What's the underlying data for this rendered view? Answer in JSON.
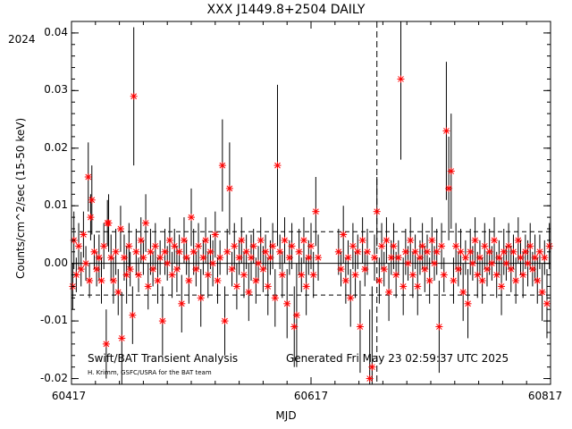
{
  "chart_data": {
    "type": "scatter",
    "title": "XXX J1449.8+2504 DAILY",
    "year_label": "2024",
    "xlabel": "MJD",
    "ylabel": "Counts/cm^2/sec (15-50 keV)",
    "xlim": [
      60417,
      60817
    ],
    "ylim": [
      -0.021,
      0.042
    ],
    "xticks": [
      60417,
      60617,
      60817
    ],
    "xtick_labels": [
      "60417",
      "60617",
      "60817"
    ],
    "yticks": [
      -0.02,
      -0.01,
      0.0,
      0.01,
      0.02,
      0.03,
      0.04
    ],
    "ytick_labels": [
      "-0.02",
      "-0.01",
      "0.00",
      "0.01",
      "0.02",
      "0.03",
      "0.04"
    ],
    "reference_lines": {
      "zero": 0.0,
      "upper_dashed": 0.0055,
      "lower_dashed": -0.0055,
      "vertical_dashed_x": 60672
    },
    "marker_color": "#ff0000",
    "errorbar_color": "#000000",
    "credit_line1": "Swift/BAT Transient Analysis",
    "credit_line2": "H. Krimm, GSFC/USRA for the BAT team",
    "generated": "Generated Fri May 23 02:59:37 UTC 2025",
    "points": [
      [
        60418,
        -0.004,
        0.004
      ],
      [
        60419,
        0.004,
        0.005
      ],
      [
        60421,
        -0.002,
        0.003
      ],
      [
        60423,
        0.003,
        0.004
      ],
      [
        60425,
        -0.001,
        0.003
      ],
      [
        60427,
        0.005,
        0.004
      ],
      [
        60429,
        0.0,
        0.003
      ],
      [
        60431,
        0.015,
        0.006
      ],
      [
        60432,
        -0.003,
        0.003
      ],
      [
        60433,
        0.008,
        0.004
      ],
      [
        60434,
        0.011,
        0.006
      ],
      [
        60436,
        0.002,
        0.003
      ],
      [
        60438,
        -0.001,
        0.003
      ],
      [
        60440,
        0.001,
        0.004
      ],
      [
        60442,
        -0.003,
        0.004
      ],
      [
        60444,
        0.003,
        0.004
      ],
      [
        60446,
        -0.014,
        0.006
      ],
      [
        60447,
        0.007,
        0.004
      ],
      [
        60448,
        0.007,
        0.005
      ],
      [
        60450,
        0.001,
        0.004
      ],
      [
        60452,
        -0.003,
        0.004
      ],
      [
        60454,
        0.002,
        0.004
      ],
      [
        60456,
        -0.005,
        0.004
      ],
      [
        60458,
        0.006,
        0.004
      ],
      [
        60459,
        -0.013,
        0.008
      ],
      [
        60461,
        0.001,
        0.004
      ],
      [
        60463,
        -0.002,
        0.005
      ],
      [
        60465,
        0.003,
        0.004
      ],
      [
        60466,
        -0.001,
        0.003
      ],
      [
        60468,
        -0.009,
        0.005
      ],
      [
        60469,
        0.029,
        0.012
      ],
      [
        60471,
        0.002,
        0.004
      ],
      [
        60473,
        -0.002,
        0.003
      ],
      [
        60475,
        0.004,
        0.004
      ],
      [
        60477,
        0.001,
        0.003
      ],
      [
        60479,
        0.007,
        0.005
      ],
      [
        60481,
        -0.004,
        0.004
      ],
      [
        60483,
        0.002,
        0.004
      ],
      [
        60485,
        -0.001,
        0.003
      ],
      [
        60487,
        0.003,
        0.004
      ],
      [
        60489,
        -0.003,
        0.004
      ],
      [
        60491,
        0.001,
        0.003
      ],
      [
        60493,
        -0.01,
        0.006
      ],
      [
        60495,
        0.002,
        0.004
      ],
      [
        60497,
        0.0,
        0.003
      ],
      [
        60499,
        0.004,
        0.004
      ],
      [
        60501,
        -0.002,
        0.004
      ],
      [
        60503,
        0.003,
        0.003
      ],
      [
        60505,
        -0.001,
        0.004
      ],
      [
        60507,
        0.002,
        0.003
      ],
      [
        60509,
        -0.007,
        0.005
      ],
      [
        60511,
        0.004,
        0.004
      ],
      [
        60513,
        0.001,
        0.003
      ],
      [
        60515,
        -0.003,
        0.004
      ],
      [
        60517,
        0.008,
        0.005
      ],
      [
        60519,
        0.002,
        0.004
      ],
      [
        60521,
        -0.001,
        0.003
      ],
      [
        60523,
        0.003,
        0.004
      ],
      [
        60525,
        -0.006,
        0.005
      ],
      [
        60527,
        0.001,
        0.003
      ],
      [
        60529,
        0.004,
        0.004
      ],
      [
        60531,
        -0.002,
        0.004
      ],
      [
        60533,
        0.002,
        0.003
      ],
      [
        60535,
        0.0,
        0.004
      ],
      [
        60537,
        0.005,
        0.004
      ],
      [
        60539,
        -0.003,
        0.004
      ],
      [
        60541,
        0.001,
        0.003
      ],
      [
        60543,
        0.017,
        0.008
      ],
      [
        60545,
        -0.01,
        0.006
      ],
      [
        60547,
        0.002,
        0.004
      ],
      [
        60549,
        0.013,
        0.008
      ],
      [
        60551,
        -0.001,
        0.003
      ],
      [
        60553,
        0.003,
        0.004
      ],
      [
        60555,
        -0.004,
        0.004
      ],
      [
        60557,
        0.001,
        0.003
      ],
      [
        60559,
        0.004,
        0.004
      ],
      [
        60561,
        -0.002,
        0.004
      ],
      [
        60563,
        0.002,
        0.003
      ],
      [
        60565,
        -0.005,
        0.005
      ],
      [
        60567,
        0.001,
        0.004
      ],
      [
        60569,
        0.003,
        0.003
      ],
      [
        60571,
        -0.003,
        0.004
      ],
      [
        60573,
        0.0,
        0.003
      ],
      [
        60575,
        0.004,
        0.004
      ],
      [
        60577,
        -0.001,
        0.004
      ],
      [
        60579,
        0.002,
        0.003
      ],
      [
        60581,
        -0.004,
        0.005
      ],
      [
        60583,
        0.001,
        0.003
      ],
      [
        60585,
        0.003,
        0.004
      ],
      [
        60587,
        -0.006,
        0.005
      ],
      [
        60589,
        0.017,
        0.014
      ],
      [
        60591,
        0.002,
        0.003
      ],
      [
        60593,
        -0.002,
        0.004
      ],
      [
        60595,
        0.004,
        0.004
      ],
      [
        60597,
        -0.007,
        0.006
      ],
      [
        60599,
        0.001,
        0.003
      ],
      [
        60601,
        0.003,
        0.004
      ],
      [
        60603,
        -0.011,
        0.007
      ],
      [
        60605,
        -0.009,
        0.009
      ],
      [
        60607,
        0.002,
        0.004
      ],
      [
        60609,
        -0.002,
        0.003
      ],
      [
        60611,
        0.004,
        0.004
      ],
      [
        60613,
        -0.004,
        0.005
      ],
      [
        60615,
        0.001,
        0.003
      ],
      [
        60617,
        0.003,
        0.004
      ],
      [
        60619,
        -0.002,
        0.004
      ],
      [
        60621,
        0.009,
        0.006
      ],
      [
        60623,
        0.001,
        0.004
      ],
      [
        60640,
        0.002,
        0.004
      ],
      [
        60642,
        -0.001,
        0.003
      ],
      [
        60644,
        0.005,
        0.005
      ],
      [
        60646,
        -0.003,
        0.004
      ],
      [
        60648,
        0.001,
        0.003
      ],
      [
        60650,
        -0.006,
        0.005
      ],
      [
        60652,
        0.003,
        0.004
      ],
      [
        60654,
        -0.002,
        0.004
      ],
      [
        60656,
        0.002,
        0.003
      ],
      [
        60658,
        -0.011,
        0.008
      ],
      [
        60660,
        0.004,
        0.004
      ],
      [
        60662,
        -0.001,
        0.003
      ],
      [
        60664,
        0.002,
        0.004
      ],
      [
        60666,
        -0.02,
        0.012
      ],
      [
        60668,
        -0.018,
        0.014
      ],
      [
        60670,
        0.001,
        0.004
      ],
      [
        60672,
        0.009,
        0.006
      ],
      [
        60674,
        -0.003,
        0.004
      ],
      [
        60676,
        0.003,
        0.004
      ],
      [
        60678,
        -0.001,
        0.003
      ],
      [
        60680,
        0.004,
        0.004
      ],
      [
        60682,
        -0.005,
        0.005
      ],
      [
        60684,
        0.001,
        0.003
      ],
      [
        60686,
        0.003,
        0.004
      ],
      [
        60688,
        -0.002,
        0.004
      ],
      [
        60690,
        0.001,
        0.003
      ],
      [
        60692,
        0.032,
        0.014
      ],
      [
        60694,
        -0.004,
        0.005
      ],
      [
        60696,
        0.002,
        0.004
      ],
      [
        60698,
        0.0,
        0.003
      ],
      [
        60700,
        0.004,
        0.004
      ],
      [
        60702,
        -0.002,
        0.004
      ],
      [
        60704,
        0.002,
        0.003
      ],
      [
        60706,
        -0.004,
        0.005
      ],
      [
        60708,
        0.001,
        0.003
      ],
      [
        60710,
        0.003,
        0.004
      ],
      [
        60712,
        -0.001,
        0.004
      ],
      [
        60714,
        0.002,
        0.003
      ],
      [
        60716,
        -0.003,
        0.004
      ],
      [
        60718,
        0.004,
        0.004
      ],
      [
        60720,
        0.0,
        0.003
      ],
      [
        60722,
        0.002,
        0.004
      ],
      [
        60724,
        -0.011,
        0.008
      ],
      [
        60726,
        0.003,
        0.004
      ],
      [
        60728,
        -0.002,
        0.003
      ],
      [
        60730,
        0.023,
        0.012
      ],
      [
        60732,
        0.013,
        0.009
      ],
      [
        60734,
        0.016,
        0.01
      ],
      [
        60736,
        -0.003,
        0.004
      ],
      [
        60738,
        0.003,
        0.004
      ],
      [
        60740,
        -0.001,
        0.003
      ],
      [
        60742,
        0.002,
        0.004
      ],
      [
        60744,
        -0.005,
        0.005
      ],
      [
        60746,
        0.001,
        0.003
      ],
      [
        60748,
        -0.007,
        0.006
      ],
      [
        60750,
        0.002,
        0.004
      ],
      [
        60752,
        0.0,
        0.003
      ],
      [
        60754,
        0.004,
        0.004
      ],
      [
        60756,
        -0.002,
        0.004
      ],
      [
        60758,
        0.001,
        0.003
      ],
      [
        60760,
        -0.003,
        0.004
      ],
      [
        60762,
        0.003,
        0.004
      ],
      [
        60764,
        -0.001,
        0.003
      ],
      [
        60766,
        0.002,
        0.004
      ],
      [
        60768,
        0.0,
        0.003
      ],
      [
        60770,
        0.004,
        0.004
      ],
      [
        60772,
        -0.002,
        0.004
      ],
      [
        60774,
        0.001,
        0.003
      ],
      [
        60776,
        -0.004,
        0.005
      ],
      [
        60778,
        0.002,
        0.004
      ],
      [
        60780,
        0.0,
        0.003
      ],
      [
        60782,
        0.003,
        0.004
      ],
      [
        60784,
        -0.001,
        0.004
      ],
      [
        60786,
        0.002,
        0.003
      ],
      [
        60788,
        -0.003,
        0.004
      ],
      [
        60790,
        0.004,
        0.004
      ],
      [
        60792,
        0.001,
        0.003
      ],
      [
        60794,
        -0.002,
        0.004
      ],
      [
        60796,
        0.002,
        0.003
      ],
      [
        60798,
        0.0,
        0.004
      ],
      [
        60800,
        0.003,
        0.004
      ],
      [
        60802,
        -0.001,
        0.003
      ],
      [
        60804,
        0.001,
        0.004
      ],
      [
        60806,
        -0.003,
        0.004
      ],
      [
        60808,
        0.002,
        0.003
      ],
      [
        60810,
        -0.005,
        0.005
      ],
      [
        60812,
        0.001,
        0.003
      ],
      [
        60814,
        -0.007,
        0.006
      ],
      [
        60816,
        0.003,
        0.004
      ]
    ]
  }
}
